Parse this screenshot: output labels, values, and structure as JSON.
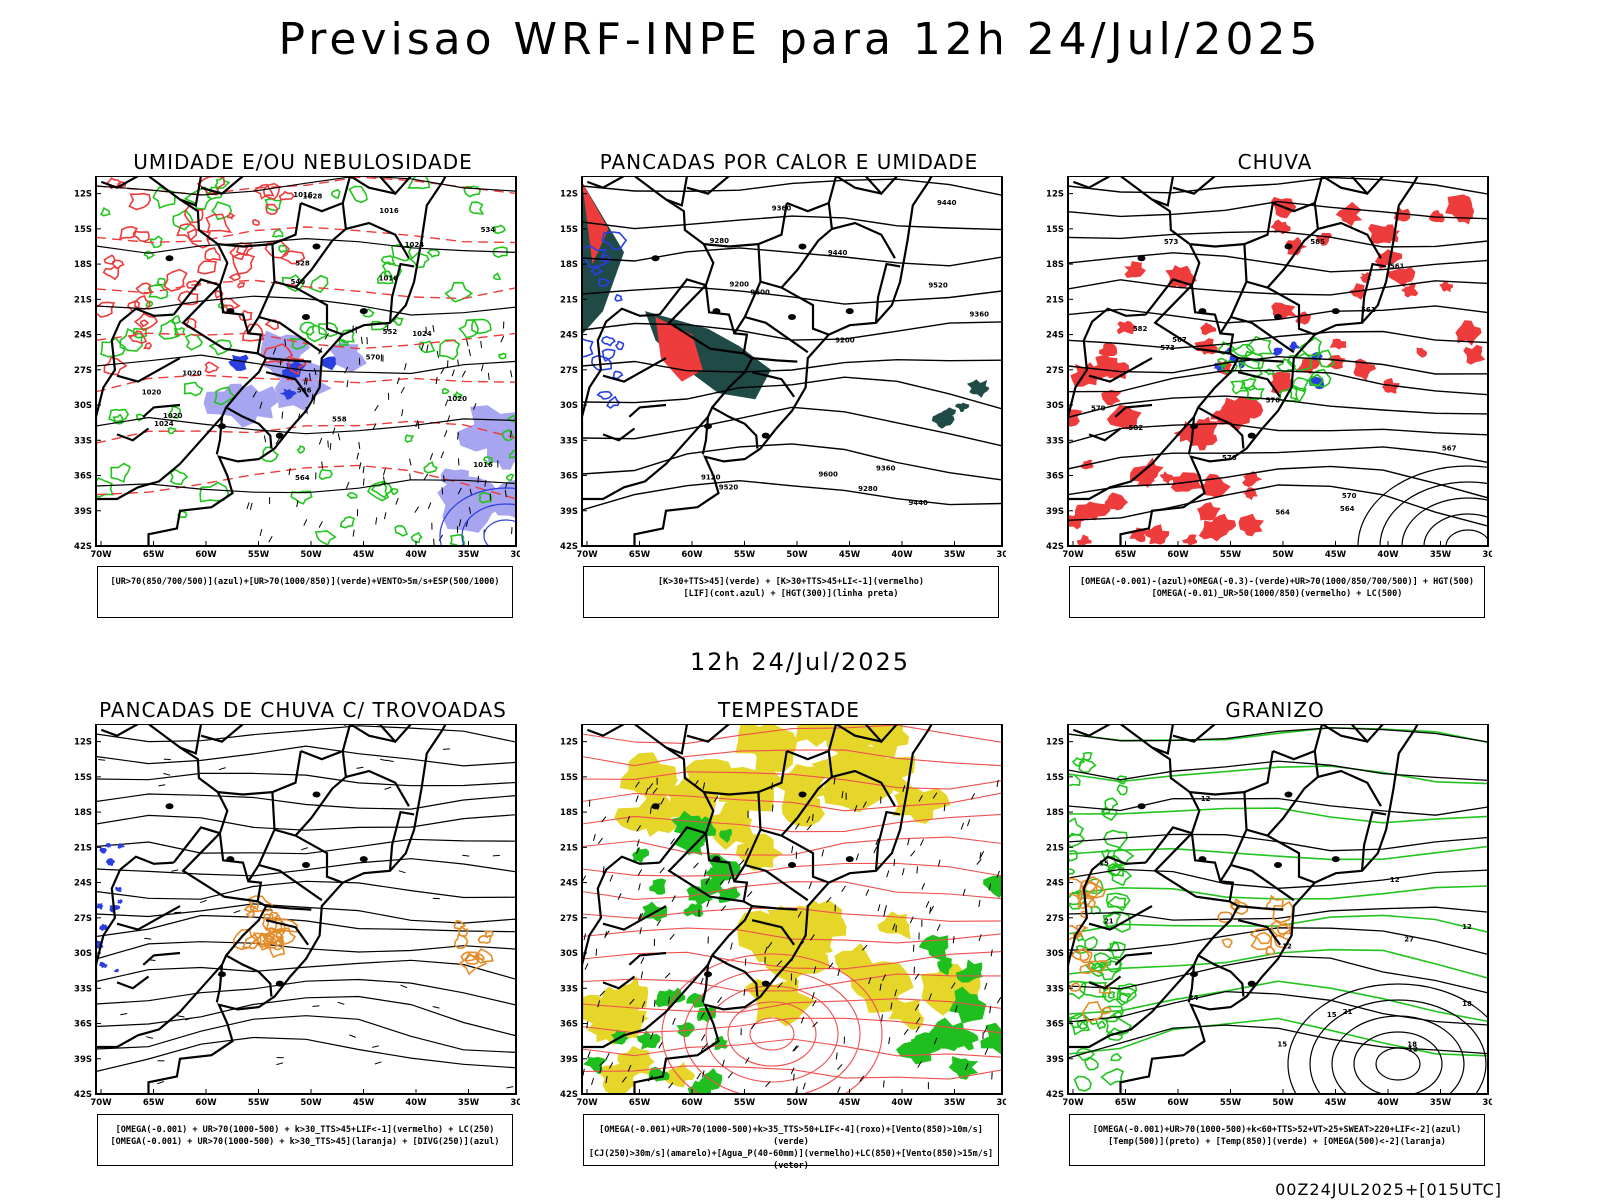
{
  "title": "Previsao WRF-INPE  para 12h 24/Jul/2025",
  "mid_title": "12h 24/Jul/2025",
  "footer": "00Z24JUL2025+[015UTC]",
  "axes": {
    "lat_labels": [
      "12S",
      "15S",
      "18S",
      "21S",
      "24S",
      "27S",
      "30S",
      "33S",
      "36S",
      "39S",
      "42S"
    ],
    "lon_labels": [
      "70W",
      "65W",
      "60W",
      "55W",
      "50W",
      "45W",
      "40W",
      "35W",
      "30W"
    ]
  },
  "panels": [
    {
      "title": "UMIDADE E/OU NEBULOSIDADE",
      "legend": [
        "[UR>70(850/700/500)](azul)+[UR>70(1000/850)](verde)+VENTO>5m/s+ESP(500/1000)"
      ],
      "contour_labels": [
        "1016",
        "1016",
        "1016",
        "1016",
        "1020",
        "1020",
        "1020",
        "1024",
        "1024",
        "1028",
        "1020",
        "1024",
        "570",
        "564",
        "558",
        "552",
        "546",
        "540",
        "534",
        "528"
      ]
    },
    {
      "title": "PANCADAS POR CALOR E UMIDADE",
      "legend": [
        "[K>30+TTS>45](verde) + [K>30+TTS>45+LI<-1](vermelho)",
        "[LIF](cont.azul) + [HGT(300)](linha preta)"
      ],
      "contour_labels": [
        "9600",
        "9600",
        "9520",
        "9520",
        "9440",
        "9440",
        "9440",
        "9360",
        "9360",
        "9360",
        "9280",
        "9280",
        "9200",
        "9200",
        "9120"
      ]
    },
    {
      "title": "CHUVA",
      "legend": [
        "[OMEGA(-0.001)-(azul)+OMEGA(-0.3)-(verde)+UR>70(1000/850/700/500)] + HGT(500)",
        "[OMEGA(-0.01)_UR>50(1000/850)(vermelho) + LC(500)"
      ],
      "contour_labels": [
        "585",
        "582",
        "582",
        "579",
        "576",
        "573",
        "573",
        "570",
        "567",
        "564",
        "561",
        "564",
        "567",
        "570",
        "561"
      ]
    },
    {
      "title": "PANCADAS DE CHUVA C/ TROVOADAS",
      "legend": [
        "[OMEGA(-0.001) + UR>70(1000-500) + k>30_TTS>45+LIF<-1](vermelho) + LC(250)",
        "[OMEGA(-0.001) + UR>70(1000-500) + k>30_TTS>45](laranja) + [DIVG(250)](azul)"
      ],
      "contour_labels": []
    },
    {
      "title": "TEMPESTADE",
      "legend": [
        "[OMEGA(-0.001)+UR>70(1000-500)+k>35_TTS>50+LIF<-4](roxo)+[Vento(850)>10m/s](verde)",
        "[CJ(250)>30m/s](amarelo)+[Agua_P(40-60mm)](vermelho)+LC(850)+[Vento(850)>15m/s](vetor)"
      ],
      "contour_labels": []
    },
    {
      "title": "GRANIZO",
      "legend": [
        "[OMEGA(-0.001)+UR>70(1000-500)+k<60+TTS>52+VT>25+SWEAT>220+LIF<-2](azul)",
        "[Temp(500)](preto) + [Temp(850)](verde) + [OMEGA(500)<-2](laranja)"
      ],
      "contour_labels": [
        "12",
        "12",
        "12",
        "12",
        "12",
        "15",
        "15",
        "15",
        "18",
        "18",
        "21",
        "21",
        "24",
        "27"
      ]
    }
  ],
  "colors": {
    "green": "#22c41e",
    "red": "#ee3b3b",
    "blue": "#2a3fe0",
    "lavender": "#a7a4f0",
    "darkteal": "#1f4a45",
    "yellow": "#e6d62a",
    "orange": "#e58c2a",
    "streamline_red": "#f05050"
  }
}
